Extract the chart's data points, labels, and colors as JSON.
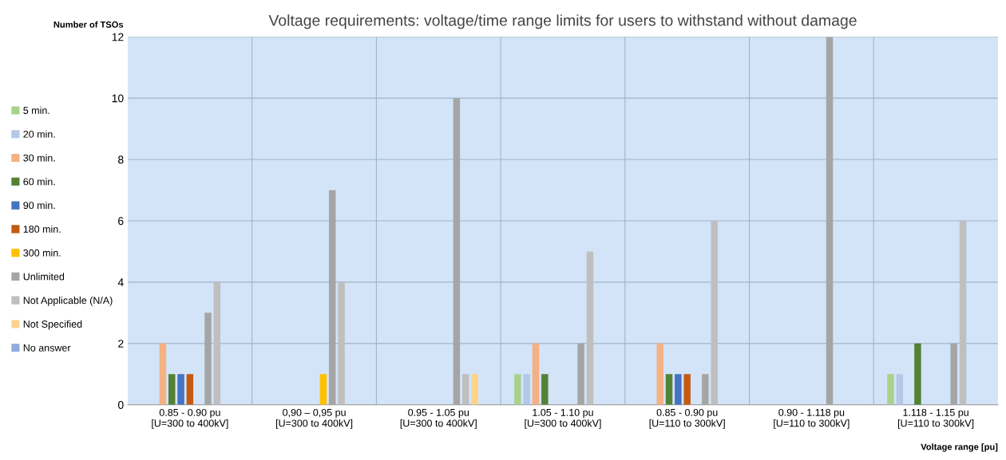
{
  "chart_data": {
    "type": "bar",
    "title": "Voltage requirements: voltage/time range limits for users to withstand without damage",
    "ylabel": "Number of TSOs",
    "xlabel": "Voltage range [pu]",
    "categories": [
      "0.85 - 0.90 pu\n[U=300 to 400kV]",
      "0,90 – 0,95 pu\n[U=300 to 400kV]",
      "0.95 - 1.05 pu\n[U=300 to 400kV]",
      "1.05 - 1.10 pu\n[U=300 to 400kV]",
      "0.85 - 0.90 pu\n[U=110 to 300kV]",
      "0.90 - 1.118 pu\n[U=110 to 300kV]",
      "1.118 - 1.15 pu\n[U=110 to 300kV]"
    ],
    "series": [
      {
        "name": "5 min.",
        "color": "#a9d18e",
        "values": [
          null,
          null,
          null,
          1,
          null,
          null,
          1
        ]
      },
      {
        "name": "20 min.",
        "color": "#b4c7e7",
        "values": [
          null,
          null,
          null,
          1,
          null,
          null,
          1
        ]
      },
      {
        "name": "30 min.",
        "color": "#f4b183",
        "values": [
          2,
          null,
          null,
          2,
          2,
          null,
          null
        ]
      },
      {
        "name": "60 min.",
        "color": "#548235",
        "values": [
          1,
          null,
          null,
          1,
          1,
          null,
          2
        ]
      },
      {
        "name": "90 min.",
        "color": "#4472c4",
        "values": [
          1,
          null,
          null,
          null,
          1,
          null,
          null
        ]
      },
      {
        "name": "180 min.",
        "color": "#c55a11",
        "values": [
          1,
          null,
          null,
          null,
          1,
          null,
          null
        ]
      },
      {
        "name": "300 min.",
        "color": "#ffc000",
        "values": [
          null,
          1,
          null,
          null,
          null,
          null,
          null
        ]
      },
      {
        "name": "Unlimited",
        "color": "#a5a5a5",
        "values": [
          3,
          7,
          10,
          2,
          1,
          12,
          2
        ]
      },
      {
        "name": "Not Applicable (N/A)",
        "color": "#bfbfbf",
        "values": [
          4,
          4,
          1,
          5,
          6,
          null,
          6
        ]
      },
      {
        "name": "Not Specified",
        "color": "#ffd28a",
        "values": [
          null,
          null,
          1,
          null,
          null,
          null,
          null
        ]
      },
      {
        "name": "No answer",
        "color": "#8faadc",
        "values": [
          null,
          null,
          null,
          null,
          null,
          null,
          null
        ]
      }
    ],
    "ylim": [
      0,
      12
    ],
    "yticks": [
      0,
      2,
      4,
      6,
      8,
      10,
      12
    ],
    "grid": true,
    "legend": "left"
  }
}
